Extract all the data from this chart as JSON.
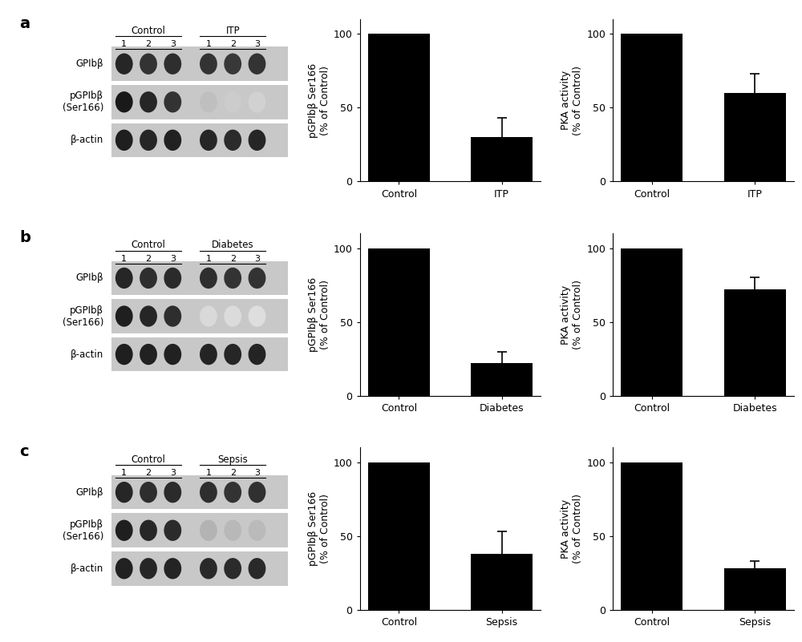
{
  "rows": [
    {
      "label": "a",
      "condition": "ITP",
      "pgpib_values": [
        100,
        30
      ],
      "pgpib_errors": [
        0,
        13
      ],
      "pka_values": [
        100,
        60
      ],
      "pka_errors": [
        0,
        13
      ],
      "pgpib_categories": [
        "Control",
        "ITP"
      ],
      "pka_categories": [
        "Control",
        "ITP"
      ],
      "wb_control_label": "Control",
      "wb_condition_label": "ITP",
      "band_intensities": {
        "GPIb_ctrl": [
          0.85,
          0.8,
          0.82
        ],
        "GPIb_cond": [
          0.8,
          0.78,
          0.8
        ],
        "pGPIb_ctrl": [
          0.9,
          0.85,
          0.8
        ],
        "pGPIb_cond": [
          0.25,
          0.2,
          0.18
        ],
        "actin_ctrl": [
          0.88,
          0.85,
          0.87
        ],
        "actin_cond": [
          0.85,
          0.83,
          0.85
        ]
      }
    },
    {
      "label": "b",
      "condition": "Diabetes",
      "pgpib_values": [
        100,
        22
      ],
      "pgpib_errors": [
        0,
        8
      ],
      "pka_values": [
        100,
        72
      ],
      "pka_errors": [
        0,
        8
      ],
      "pgpib_categories": [
        "Control",
        "Diabetes"
      ],
      "pka_categories": [
        "Control",
        "Diabetes"
      ],
      "wb_control_label": "Control",
      "wb_condition_label": "Diabetes",
      "band_intensities": {
        "GPIb_ctrl": [
          0.85,
          0.82,
          0.83
        ],
        "GPIb_cond": [
          0.82,
          0.8,
          0.8
        ],
        "pGPIb_ctrl": [
          0.88,
          0.85,
          0.82
        ],
        "pGPIb_cond": [
          0.15,
          0.14,
          0.13
        ],
        "actin_ctrl": [
          0.88,
          0.87,
          0.87
        ],
        "actin_cond": [
          0.86,
          0.85,
          0.86
        ]
      }
    },
    {
      "label": "c",
      "condition": "Sepsis",
      "pgpib_values": [
        100,
        38
      ],
      "pgpib_errors": [
        0,
        15
      ],
      "pka_values": [
        100,
        28
      ],
      "pka_errors": [
        0,
        5
      ],
      "pgpib_categories": [
        "Control",
        "Sepsis"
      ],
      "pka_categories": [
        "Control",
        "Sepsis"
      ],
      "wb_control_label": "Control",
      "wb_condition_label": "Sepsis",
      "band_intensities": {
        "GPIb_ctrl": [
          0.85,
          0.82,
          0.83
        ],
        "GPIb_cond": [
          0.82,
          0.8,
          0.81
        ],
        "pGPIb_ctrl": [
          0.88,
          0.85,
          0.83
        ],
        "pGPIb_cond": [
          0.3,
          0.28,
          0.27
        ],
        "actin_ctrl": [
          0.87,
          0.85,
          0.86
        ],
        "actin_cond": [
          0.84,
          0.83,
          0.84
        ]
      }
    }
  ],
  "bar_color": "#000000",
  "bar_width": 0.6,
  "ylim": [
    0,
    110
  ],
  "yticks": [
    0,
    50,
    100
  ],
  "ylabel_pgpib": "pGPIbβ Ser166\n(% of Control)",
  "ylabel_pka": "PKA activity\n(% of Control)",
  "background_color": "#ffffff",
  "lane_count": 3,
  "tick_fontsize": 9,
  "axis_label_fontsize": 9
}
